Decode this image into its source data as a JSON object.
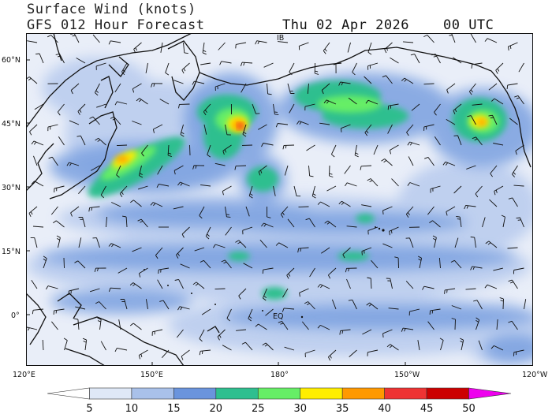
{
  "header": {
    "title": "Surface Wind (knots)",
    "subtitle": "GFS 012 Hour Forecast",
    "date": "Thu 02 Apr 2026",
    "time": "00 UTC"
  },
  "map": {
    "lat_labels": [
      "60°N",
      "45°N",
      "30°N",
      "15°N",
      "0°"
    ],
    "lon_labels": [
      "120°E",
      "150°E",
      "180°",
      "150°W",
      "120°W"
    ],
    "markers": [
      "IB",
      "EQ"
    ]
  },
  "legend": {
    "values": [
      "5",
      "10",
      "15",
      "20",
      "25",
      "30",
      "35",
      "40",
      "45",
      "50"
    ],
    "colors": [
      "#ffffff",
      "#dfe8f7",
      "#a9c1ea",
      "#6a94dd",
      "#2fbf8f",
      "#66ee66",
      "#ffee00",
      "#ff9900",
      "#ee3333",
      "#cc0000",
      "#ee00ee"
    ]
  }
}
